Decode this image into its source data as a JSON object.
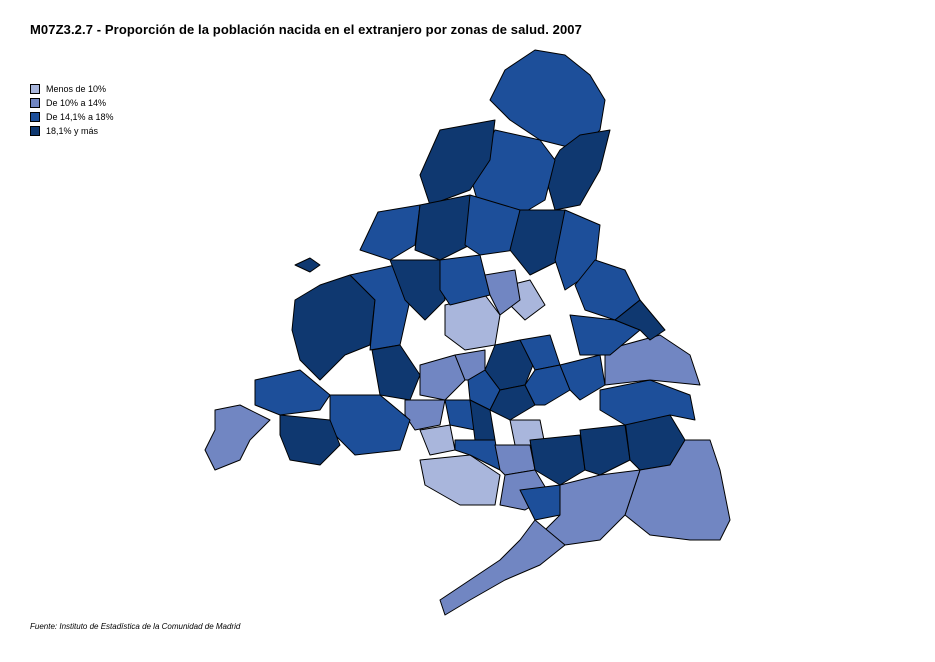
{
  "title": "M07Z3.2.7 - Proporción de la población nacida en el extranjero por zonas de salud. 2007",
  "legend": [
    {
      "label": "Menos de 10%",
      "color": "#a9b6dc"
    },
    {
      "label": "De 10% a 14%",
      "color": "#7186c2"
    },
    {
      "label": "De 14,1% a 18%",
      "color": "#1d4f9a"
    },
    {
      "label": "18,1% y más",
      "color": "#0f3870"
    }
  ],
  "source": "Fuente: Instituto de Estadística de la Comunidad de Madrid"
}
